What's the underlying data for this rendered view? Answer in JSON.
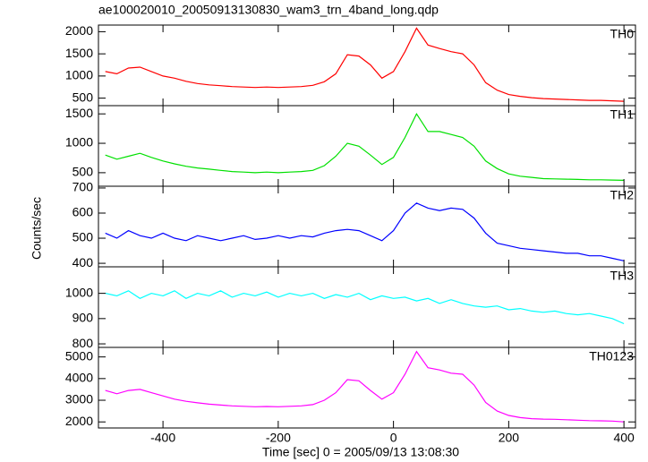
{
  "chart_data": {
    "type": "line",
    "title": "ae100020010_20050913130830_wam3_trn_4band_long.qdp",
    "xlabel": "Time [sec] 0 = 2005/09/13 13:08:30",
    "ylabel": "Counts/sec",
    "xlim": [
      -512,
      420
    ],
    "xticks": [
      -400,
      -200,
      0,
      200,
      400
    ],
    "x": [
      -500,
      -480,
      -460,
      -440,
      -420,
      -400,
      -380,
      -360,
      -340,
      -320,
      -300,
      -280,
      -260,
      -240,
      -220,
      -200,
      -180,
      -160,
      -140,
      -120,
      -100,
      -80,
      -60,
      -40,
      -20,
      0,
      20,
      40,
      60,
      80,
      100,
      120,
      140,
      160,
      180,
      200,
      220,
      240,
      260,
      280,
      300,
      320,
      340,
      360,
      380,
      400
    ],
    "panels": [
      {
        "label": "TH0",
        "color": "#ff0000",
        "ylim": [
          330,
          2150
        ],
        "yticks": [
          500,
          1000,
          1500,
          2000
        ],
        "values": [
          1100,
          1050,
          1180,
          1200,
          1100,
          1000,
          950,
          880,
          830,
          800,
          780,
          760,
          750,
          740,
          750,
          740,
          750,
          760,
          790,
          870,
          1050,
          1480,
          1450,
          1250,
          950,
          1100,
          1550,
          2080,
          1700,
          1620,
          1550,
          1500,
          1250,
          850,
          680,
          580,
          540,
          510,
          490,
          480,
          470,
          460,
          450,
          450,
          440,
          430
        ]
      },
      {
        "label": "TH1",
        "color": "#00e000",
        "ylim": [
          270,
          1640
        ],
        "yticks": [
          500,
          1000,
          1500
        ],
        "values": [
          800,
          730,
          780,
          830,
          760,
          700,
          650,
          610,
          580,
          560,
          540,
          520,
          510,
          500,
          510,
          500,
          510,
          520,
          540,
          620,
          780,
          1000,
          950,
          800,
          640,
          760,
          1100,
          1500,
          1200,
          1200,
          1150,
          1100,
          950,
          700,
          570,
          480,
          440,
          420,
          400,
          395,
          390,
          385,
          380,
          380,
          375,
          370
        ]
      },
      {
        "label": "TH2",
        "color": "#0000ff",
        "ylim": [
          386,
          707
        ],
        "yticks": [
          400,
          500,
          600,
          700
        ],
        "values": [
          520,
          500,
          530,
          510,
          500,
          520,
          500,
          490,
          510,
          500,
          490,
          500,
          510,
          495,
          500,
          510,
          500,
          510,
          505,
          520,
          530,
          535,
          530,
          510,
          490,
          530,
          600,
          640,
          620,
          610,
          620,
          615,
          580,
          520,
          480,
          470,
          460,
          455,
          450,
          445,
          440,
          440,
          430,
          430,
          420,
          410
        ]
      },
      {
        "label": "TH3",
        "color": "#00ffff",
        "ylim": [
          786,
          1105
        ],
        "yticks": [
          800,
          900,
          1000
        ],
        "values": [
          1000,
          990,
          1010,
          980,
          1000,
          990,
          1010,
          980,
          1000,
          990,
          1010,
          985,
          1000,
          990,
          1005,
          985,
          1000,
          990,
          1000,
          980,
          995,
          985,
          1000,
          975,
          990,
          980,
          985,
          970,
          980,
          960,
          975,
          960,
          950,
          945,
          950,
          935,
          940,
          930,
          925,
          930,
          920,
          915,
          920,
          910,
          900,
          880
        ]
      },
      {
        "label": "TH0123",
        "color": "#ff00ff",
        "ylim": [
          1720,
          5440
        ],
        "yticks": [
          2000,
          3000,
          4000,
          5000
        ],
        "values": [
          3450,
          3300,
          3450,
          3500,
          3350,
          3200,
          3050,
          2950,
          2880,
          2820,
          2780,
          2740,
          2720,
          2700,
          2710,
          2700,
          2720,
          2740,
          2800,
          3000,
          3350,
          3950,
          3900,
          3450,
          3050,
          3350,
          4200,
          5250,
          4500,
          4400,
          4250,
          4200,
          3700,
          2900,
          2500,
          2300,
          2200,
          2150,
          2130,
          2120,
          2100,
          2080,
          2060,
          2050,
          2040,
          2000
        ]
      }
    ]
  }
}
